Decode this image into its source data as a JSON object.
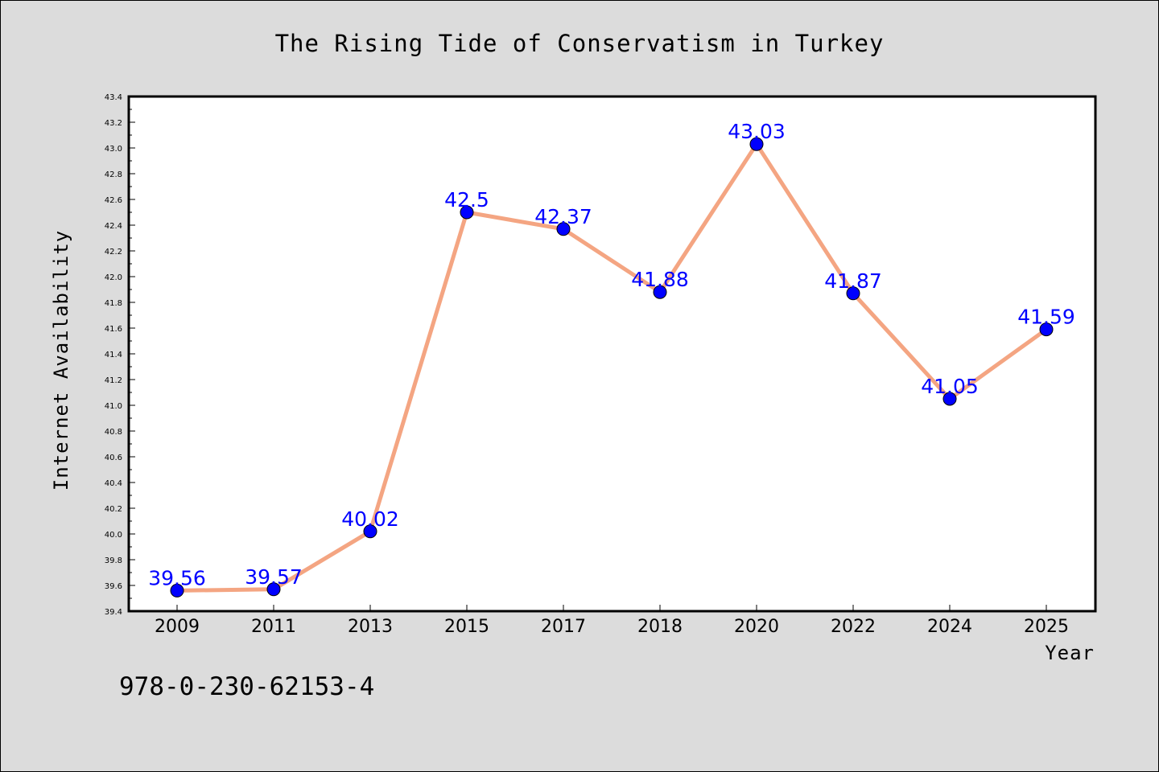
{
  "chart_data": {
    "type": "line",
    "title": "The Rising Tide of Conservatism in Turkey",
    "xlabel": "Year",
    "ylabel": "Internet Availability",
    "categories": [
      "2009",
      "2011",
      "2013",
      "2015",
      "2017",
      "2018",
      "2020",
      "2022",
      "2024",
      "2025"
    ],
    "series": [
      {
        "values": [
          39.56,
          39.57,
          40.02,
          42.5,
          42.37,
          41.88,
          43.03,
          41.87,
          41.05,
          41.59
        ],
        "labels": [
          "39.56",
          "39.57",
          "40.02",
          "42.5",
          "42.37",
          "41.88",
          "43.03",
          "41.87",
          "41.05",
          "41.59"
        ],
        "line_color": "#f4a582",
        "marker_color": "#0000ff"
      }
    ],
    "ylim": [
      39.4,
      43.4
    ],
    "yticks": [
      "39.4",
      "39.6",
      "39.8",
      "40.0",
      "40.2",
      "40.4",
      "40.6",
      "40.8",
      "41.0",
      "41.2",
      "41.4",
      "41.6",
      "41.8",
      "42.0",
      "42.2",
      "42.4",
      "42.6",
      "42.8",
      "43.0",
      "43.2",
      "43.4"
    ],
    "grid": false,
    "legend": "none",
    "colors": {
      "background": "#dcdcdc",
      "plot_background": "#ffffff",
      "label_color": "#0000ff"
    }
  },
  "annotation": {
    "code": "978-0-230-62153-4"
  }
}
